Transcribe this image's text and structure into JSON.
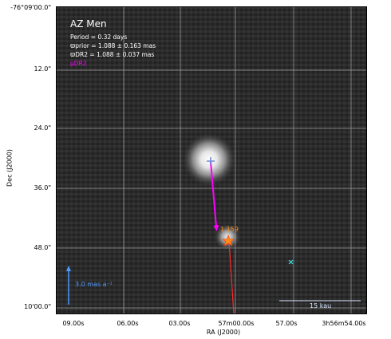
{
  "figure": {
    "title": "AZ Men",
    "period_line": "Period =   0.32 days",
    "prior_line": "ϖprior = 1.088 ± 0.163 mas",
    "dr2_line": "ϖDR2 = 1.088 ± 0.037 mas",
    "pm_label": "μDR2",
    "star_label": "1.159",
    "pm_scale_label": "3.0 mas a⁻¹",
    "distance_scale_label": "15 kau",
    "xlabel": "RA (J2000)",
    "ylabel": "Dec (J2000)"
  },
  "axes": {
    "y_ticks": [
      "-76°09'00.0\"",
      "12.0\"",
      "24.0\"",
      "36.0\"",
      "48.0\"",
      "10'00.0\""
    ],
    "x_ticks": [
      "09.00s",
      "06.00s",
      "03.00s",
      "57m00.00s",
      "57.00s",
      "3h56m54.00s"
    ]
  },
  "colors": {
    "pm_arrow": "#ff00ff",
    "ra_line": "#ff2a2a",
    "star_marker": "#ff8c1a",
    "pm_scale": "#4d9bff",
    "cross_marker": "#3fe0e0",
    "grid": "#bdbdbd"
  }
}
